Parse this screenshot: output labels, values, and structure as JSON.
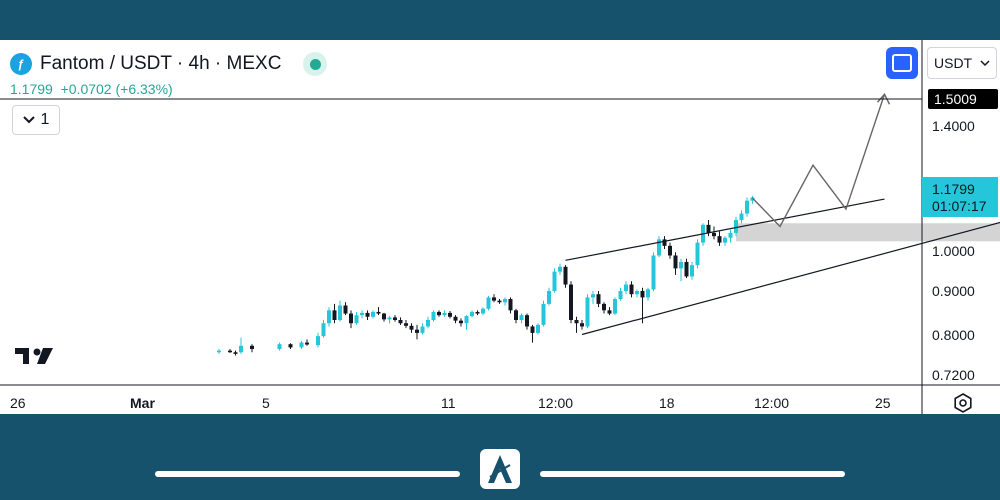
{
  "header": {
    "title": "Fantom / USDT · 4h · MEXC",
    "price_info": "1.1799  +0.0702 (+6.33%)",
    "interval": "1",
    "currency": "USDT"
  },
  "colors": {
    "frame": "#16526b",
    "up": "#26c6da",
    "down": "#131722",
    "accent": "#2962ff",
    "price_tag": "#26c6da"
  },
  "chart_data": {
    "type": "candlestick",
    "title": "Fantom / USDT · 4h · MEXC",
    "ylim": [
      0.7,
      1.55
    ],
    "y_ticks": [
      "1.4000",
      "1.0000",
      "0.9000",
      "0.8000",
      "0.7200"
    ],
    "x_ticks": [
      "26",
      "Mar",
      "5",
      "11",
      "12:00",
      "18",
      "12:00",
      "25"
    ],
    "price_tag": {
      "value": "1.1799",
      "countdown": "01:07:17"
    },
    "target_tag": {
      "value": "1.5009"
    },
    "grid": false,
    "candles": [
      {
        "x": 0,
        "o": 0.7,
        "h": 0.71,
        "l": 0.695,
        "c": 0.705
      },
      {
        "x": 2,
        "o": 0.705,
        "h": 0.71,
        "l": 0.698,
        "c": 0.7
      },
      {
        "x": 3,
        "o": 0.7,
        "h": 0.705,
        "l": 0.69,
        "c": 0.695
      },
      {
        "x": 4,
        "o": 0.7,
        "h": 0.745,
        "l": 0.695,
        "c": 0.72
      },
      {
        "x": 6,
        "o": 0.72,
        "h": 0.725,
        "l": 0.7,
        "c": 0.71
      },
      {
        "x": 11,
        "o": 0.71,
        "h": 0.73,
        "l": 0.705,
        "c": 0.725
      },
      {
        "x": 13,
        "o": 0.725,
        "h": 0.728,
        "l": 0.71,
        "c": 0.715
      },
      {
        "x": 15,
        "o": 0.715,
        "h": 0.735,
        "l": 0.71,
        "c": 0.73
      },
      {
        "x": 16,
        "o": 0.73,
        "h": 0.74,
        "l": 0.72,
        "c": 0.724
      },
      {
        "x": 18,
        "o": 0.722,
        "h": 0.76,
        "l": 0.715,
        "c": 0.75
      },
      {
        "x": 19,
        "o": 0.75,
        "h": 0.8,
        "l": 0.745,
        "c": 0.79
      },
      {
        "x": 20,
        "o": 0.79,
        "h": 0.84,
        "l": 0.78,
        "c": 0.83
      },
      {
        "x": 21,
        "o": 0.83,
        "h": 0.85,
        "l": 0.79,
        "c": 0.8
      },
      {
        "x": 22,
        "o": 0.8,
        "h": 0.86,
        "l": 0.795,
        "c": 0.845
      },
      {
        "x": 23,
        "o": 0.845,
        "h": 0.855,
        "l": 0.815,
        "c": 0.82
      },
      {
        "x": 24,
        "o": 0.82,
        "h": 0.83,
        "l": 0.775,
        "c": 0.79
      },
      {
        "x": 25,
        "o": 0.79,
        "h": 0.825,
        "l": 0.785,
        "c": 0.815
      },
      {
        "x": 26,
        "o": 0.815,
        "h": 0.83,
        "l": 0.805,
        "c": 0.822
      },
      {
        "x": 27,
        "o": 0.822,
        "h": 0.83,
        "l": 0.8,
        "c": 0.81
      },
      {
        "x": 28,
        "o": 0.81,
        "h": 0.83,
        "l": 0.805,
        "c": 0.825
      },
      {
        "x": 29,
        "o": 0.825,
        "h": 0.84,
        "l": 0.815,
        "c": 0.82
      },
      {
        "x": 30,
        "o": 0.82,
        "h": 0.822,
        "l": 0.795,
        "c": 0.802
      },
      {
        "x": 31,
        "o": 0.802,
        "h": 0.812,
        "l": 0.79,
        "c": 0.808
      },
      {
        "x": 32,
        "o": 0.808,
        "h": 0.815,
        "l": 0.795,
        "c": 0.8
      },
      {
        "x": 33,
        "o": 0.8,
        "h": 0.808,
        "l": 0.785,
        "c": 0.79
      },
      {
        "x": 34,
        "o": 0.79,
        "h": 0.8,
        "l": 0.775,
        "c": 0.782
      },
      {
        "x": 35,
        "o": 0.782,
        "h": 0.79,
        "l": 0.76,
        "c": 0.77
      },
      {
        "x": 36,
        "o": 0.77,
        "h": 0.785,
        "l": 0.74,
        "c": 0.76
      },
      {
        "x": 37,
        "o": 0.76,
        "h": 0.79,
        "l": 0.755,
        "c": 0.78
      },
      {
        "x": 38,
        "o": 0.78,
        "h": 0.81,
        "l": 0.775,
        "c": 0.8
      },
      {
        "x": 39,
        "o": 0.8,
        "h": 0.83,
        "l": 0.795,
        "c": 0.825
      },
      {
        "x": 40,
        "o": 0.825,
        "h": 0.83,
        "l": 0.81,
        "c": 0.815
      },
      {
        "x": 41,
        "o": 0.815,
        "h": 0.83,
        "l": 0.81,
        "c": 0.822
      },
      {
        "x": 42,
        "o": 0.822,
        "h": 0.828,
        "l": 0.805,
        "c": 0.81
      },
      {
        "x": 43,
        "o": 0.81,
        "h": 0.815,
        "l": 0.79,
        "c": 0.798
      },
      {
        "x": 44,
        "o": 0.798,
        "h": 0.805,
        "l": 0.78,
        "c": 0.79
      },
      {
        "x": 45,
        "o": 0.79,
        "h": 0.815,
        "l": 0.77,
        "c": 0.812
      },
      {
        "x": 46,
        "o": 0.812,
        "h": 0.83,
        "l": 0.808,
        "c": 0.825
      },
      {
        "x": 47,
        "o": 0.825,
        "h": 0.83,
        "l": 0.815,
        "c": 0.82
      },
      {
        "x": 48,
        "o": 0.82,
        "h": 0.84,
        "l": 0.815,
        "c": 0.835
      },
      {
        "x": 49,
        "o": 0.835,
        "h": 0.875,
        "l": 0.83,
        "c": 0.87
      },
      {
        "x": 50,
        "o": 0.87,
        "h": 0.88,
        "l": 0.855,
        "c": 0.86
      },
      {
        "x": 51,
        "o": 0.86,
        "h": 0.865,
        "l": 0.85,
        "c": 0.855
      },
      {
        "x": 52,
        "o": 0.855,
        "h": 0.87,
        "l": 0.845,
        "c": 0.865
      },
      {
        "x": 53,
        "o": 0.865,
        "h": 0.87,
        "l": 0.82,
        "c": 0.83
      },
      {
        "x": 54,
        "o": 0.83,
        "h": 0.835,
        "l": 0.79,
        "c": 0.8
      },
      {
        "x": 55,
        "o": 0.8,
        "h": 0.82,
        "l": 0.79,
        "c": 0.815
      },
      {
        "x": 56,
        "o": 0.815,
        "h": 0.82,
        "l": 0.77,
        "c": 0.78
      },
      {
        "x": 57,
        "o": 0.78,
        "h": 0.785,
        "l": 0.73,
        "c": 0.76
      },
      {
        "x": 58,
        "o": 0.76,
        "h": 0.79,
        "l": 0.755,
        "c": 0.785
      },
      {
        "x": 59,
        "o": 0.785,
        "h": 0.86,
        "l": 0.78,
        "c": 0.85
      },
      {
        "x": 60,
        "o": 0.85,
        "h": 0.9,
        "l": 0.845,
        "c": 0.89
      },
      {
        "x": 61,
        "o": 0.89,
        "h": 0.96,
        "l": 0.885,
        "c": 0.95
      },
      {
        "x": 62,
        "o": 0.95,
        "h": 0.975,
        "l": 0.94,
        "c": 0.965
      },
      {
        "x": 63,
        "o": 0.965,
        "h": 0.97,
        "l": 0.9,
        "c": 0.91
      },
      {
        "x": 64,
        "o": 0.91,
        "h": 0.92,
        "l": 0.79,
        "c": 0.8
      },
      {
        "x": 65,
        "o": 0.8,
        "h": 0.81,
        "l": 0.76,
        "c": 0.79
      },
      {
        "x": 66,
        "o": 0.79,
        "h": 0.8,
        "l": 0.77,
        "c": 0.78
      },
      {
        "x": 67,
        "o": 0.78,
        "h": 0.88,
        "l": 0.775,
        "c": 0.87
      },
      {
        "x": 68,
        "o": 0.87,
        "h": 0.89,
        "l": 0.85,
        "c": 0.88
      },
      {
        "x": 69,
        "o": 0.88,
        "h": 0.89,
        "l": 0.84,
        "c": 0.85
      },
      {
        "x": 70,
        "o": 0.85,
        "h": 0.855,
        "l": 0.82,
        "c": 0.83
      },
      {
        "x": 71,
        "o": 0.83,
        "h": 0.84,
        "l": 0.815,
        "c": 0.82
      },
      {
        "x": 72,
        "o": 0.82,
        "h": 0.87,
        "l": 0.815,
        "c": 0.865
      },
      {
        "x": 73,
        "o": 0.865,
        "h": 0.9,
        "l": 0.86,
        "c": 0.89
      },
      {
        "x": 74,
        "o": 0.89,
        "h": 0.92,
        "l": 0.88,
        "c": 0.91
      },
      {
        "x": 75,
        "o": 0.91,
        "h": 0.92,
        "l": 0.87,
        "c": 0.88
      },
      {
        "x": 76,
        "o": 0.88,
        "h": 0.895,
        "l": 0.87,
        "c": 0.89
      },
      {
        "x": 77,
        "o": 0.89,
        "h": 0.9,
        "l": 0.79,
        "c": 0.87
      },
      {
        "x": 78,
        "o": 0.87,
        "h": 0.9,
        "l": 0.86,
        "c": 0.895
      },
      {
        "x": 79,
        "o": 0.895,
        "h": 1.01,
        "l": 0.89,
        "c": 1.0
      },
      {
        "x": 80,
        "o": 1.0,
        "h": 1.06,
        "l": 0.995,
        "c": 1.05
      },
      {
        "x": 81,
        "o": 1.05,
        "h": 1.06,
        "l": 1.02,
        "c": 1.03
      },
      {
        "x": 82,
        "o": 1.03,
        "h": 1.04,
        "l": 0.99,
        "c": 1.0
      },
      {
        "x": 83,
        "o": 1.0,
        "h": 1.01,
        "l": 0.94,
        "c": 0.96
      },
      {
        "x": 84,
        "o": 0.96,
        "h": 0.99,
        "l": 0.92,
        "c": 0.98
      },
      {
        "x": 85,
        "o": 0.98,
        "h": 0.99,
        "l": 0.93,
        "c": 0.935
      },
      {
        "x": 86,
        "o": 0.935,
        "h": 0.98,
        "l": 0.925,
        "c": 0.97
      },
      {
        "x": 87,
        "o": 0.97,
        "h": 1.05,
        "l": 0.96,
        "c": 1.04
      },
      {
        "x": 88,
        "o": 1.04,
        "h": 1.1,
        "l": 1.03,
        "c": 1.095
      },
      {
        "x": 89,
        "o": 1.095,
        "h": 1.11,
        "l": 1.06,
        "c": 1.07
      },
      {
        "x": 90,
        "o": 1.07,
        "h": 1.09,
        "l": 1.05,
        "c": 1.06
      },
      {
        "x": 91,
        "o": 1.06,
        "h": 1.075,
        "l": 1.03,
        "c": 1.04
      },
      {
        "x": 92,
        "o": 1.04,
        "h": 1.06,
        "l": 1.03,
        "c": 1.055
      },
      {
        "x": 93,
        "o": 1.055,
        "h": 1.08,
        "l": 1.04,
        "c": 1.07
      },
      {
        "x": 94,
        "o": 1.07,
        "h": 1.12,
        "l": 1.06,
        "c": 1.11
      },
      {
        "x": 95,
        "o": 1.11,
        "h": 1.14,
        "l": 1.1,
        "c": 1.13
      },
      {
        "x": 96,
        "o": 1.13,
        "h": 1.18,
        "l": 1.12,
        "c": 1.17
      },
      {
        "x": 97,
        "o": 1.17,
        "h": 1.185,
        "l": 1.16,
        "c": 1.18
      }
    ],
    "rising_wedge": {
      "upper": [
        [
          63,
          0.985
        ],
        [
          121,
          1.175
        ]
      ],
      "lower": [
        [
          66,
          0.755
        ],
        [
          147,
          1.125
        ]
      ]
    },
    "supply_zone": {
      "x": [
        94,
        147
      ],
      "y": [
        1.044,
        1.1
      ]
    },
    "projection_path": [
      [
        97,
        1.178
      ],
      [
        102,
        1.09
      ],
      [
        108,
        1.28
      ],
      [
        114,
        1.144
      ],
      [
        121,
        1.5
      ]
    ]
  }
}
